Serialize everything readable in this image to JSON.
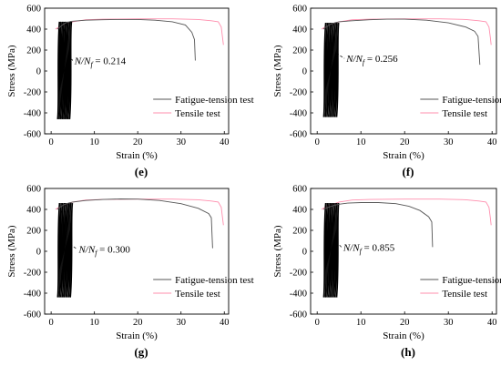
{
  "chart_data": [
    {
      "type": "line",
      "panel_label": "(e)",
      "xlabel": "Strain (%)",
      "ylabel": "Stress (MPa)",
      "xlim": [
        -1.5,
        41
      ],
      "ylim": [
        -600,
        600
      ],
      "xticks": [
        0,
        10,
        20,
        30,
        40
      ],
      "yticks": [
        -600,
        -400,
        -200,
        0,
        200,
        400,
        600
      ],
      "grid": false,
      "legend_position": "lower-right",
      "annotation": {
        "prefix": "N/N",
        "sub": "f",
        "suffix": " = 0.214",
        "at": [
          3.7,
          100
        ]
      },
      "series": [
        {
          "name": "Fatigue-tension test",
          "color": "#555555",
          "points": [
            [
              1.4,
              400
            ],
            [
              1.8,
              410
            ],
            [
              2.6,
              440
            ],
            [
              3.4,
              460
            ],
            [
              4.6,
              475
            ],
            [
              8,
              485
            ],
            [
              12,
              490
            ],
            [
              16,
              492
            ],
            [
              20,
              492
            ],
            [
              24,
              485
            ],
            [
              28,
              470
            ],
            [
              31,
              440
            ],
            [
              32.5,
              370
            ],
            [
              33.1,
              300
            ],
            [
              33.3,
              100
            ]
          ],
          "cyclic_band": {
            "x_min": 1.5,
            "x_max": 4.6,
            "y_min": -460,
            "y_max": 480
          }
        },
        {
          "name": "Tensile test",
          "color": "#ff8fae",
          "points": [
            [
              1.0,
              400
            ],
            [
              1.8,
              420
            ],
            [
              3,
              440
            ],
            [
              5,
              470
            ],
            [
              8,
              490
            ],
            [
              12,
              495
            ],
            [
              20,
              498
            ],
            [
              28,
              498
            ],
            [
              34,
              492
            ],
            [
              37,
              480
            ],
            [
              38.6,
              470
            ],
            [
              39.3,
              420
            ],
            [
              39.6,
              320
            ],
            [
              39.8,
              250
            ]
          ]
        }
      ]
    },
    {
      "type": "line",
      "panel_label": "(f)",
      "xlabel": "Strain (%)",
      "ylabel": "Stress (MPa)",
      "xlim": [
        -1.5,
        41
      ],
      "ylim": [
        -600,
        600
      ],
      "xticks": [
        0,
        10,
        20,
        30,
        40
      ],
      "yticks": [
        -600,
        -400,
        -200,
        0,
        200,
        400,
        600
      ],
      "grid": false,
      "legend_position": "lower-right",
      "annotation": {
        "prefix": "N/N",
        "sub": "f",
        "suffix": " = 0.256",
        "at": [
          5.0,
          120
        ]
      },
      "series": [
        {
          "name": "Fatigue-tension test",
          "color": "#555555",
          "points": [
            [
              1.4,
              400
            ],
            [
              2,
              420
            ],
            [
              3,
              445
            ],
            [
              4,
              460
            ],
            [
              5,
              470
            ],
            [
              8,
              480
            ],
            [
              12,
              490
            ],
            [
              16,
              495
            ],
            [
              20,
              495
            ],
            [
              25,
              485
            ],
            [
              30,
              460
            ],
            [
              34,
              420
            ],
            [
              36,
              380
            ],
            [
              36.8,
              330
            ],
            [
              37.2,
              60
            ]
          ],
          "cyclic_band": {
            "x_min": 1.5,
            "x_max": 4.8,
            "y_min": -440,
            "y_max": 470
          }
        },
        {
          "name": "Tensile test",
          "color": "#ff8fae",
          "points": [
            [
              1.0,
              400
            ],
            [
              1.8,
              420
            ],
            [
              3,
              440
            ],
            [
              5,
              470
            ],
            [
              8,
              490
            ],
            [
              12,
              495
            ],
            [
              20,
              498
            ],
            [
              28,
              498
            ],
            [
              34,
              492
            ],
            [
              37,
              480
            ],
            [
              38.6,
              470
            ],
            [
              39.3,
              420
            ],
            [
              39.6,
              320
            ],
            [
              39.8,
              250
            ]
          ]
        }
      ]
    },
    {
      "type": "line",
      "panel_label": "(g)",
      "xlabel": "Strain (%)",
      "ylabel": "Stress (MPa)",
      "xlim": [
        -1.5,
        41
      ],
      "ylim": [
        -600,
        600
      ],
      "xticks": [
        0,
        10,
        20,
        30,
        40
      ],
      "yticks": [
        -600,
        -400,
        -200,
        0,
        200,
        400,
        600
      ],
      "grid": false,
      "legend_position": "lower-right",
      "annotation": {
        "prefix": "N/N",
        "sub": "f",
        "suffix": " = 0.300",
        "at": [
          4.7,
          20
        ]
      },
      "series": [
        {
          "name": "Fatigue-tension test",
          "color": "#555555",
          "points": [
            [
              1.4,
              400
            ],
            [
              2,
              420
            ],
            [
              3,
              445
            ],
            [
              4,
              460
            ],
            [
              5,
              470
            ],
            [
              8,
              485
            ],
            [
              12,
              495
            ],
            [
              16,
              500
            ],
            [
              20,
              498
            ],
            [
              25,
              485
            ],
            [
              30,
              455
            ],
            [
              34,
              410
            ],
            [
              36.4,
              360
            ],
            [
              37,
              320
            ],
            [
              37.3,
              30
            ]
          ],
          "cyclic_band": {
            "x_min": 1.5,
            "x_max": 4.8,
            "y_min": -440,
            "y_max": 470
          }
        },
        {
          "name": "Tensile test",
          "color": "#ff8fae",
          "points": [
            [
              1.0,
              400
            ],
            [
              1.8,
              420
            ],
            [
              3,
              440
            ],
            [
              5,
              470
            ],
            [
              8,
              490
            ],
            [
              12,
              495
            ],
            [
              20,
              498
            ],
            [
              28,
              498
            ],
            [
              34,
              492
            ],
            [
              37,
              480
            ],
            [
              38.6,
              470
            ],
            [
              39.3,
              420
            ],
            [
              39.6,
              320
            ],
            [
              39.8,
              250
            ]
          ]
        }
      ]
    },
    {
      "type": "line",
      "panel_label": "(h)",
      "xlabel": "Strain (%)",
      "ylabel": "Stress (MPa)",
      "xlim": [
        -1.5,
        41
      ],
      "ylim": [
        -600,
        600
      ],
      "xticks": [
        0,
        10,
        20,
        30,
        40
      ],
      "yticks": [
        -600,
        -400,
        -200,
        0,
        200,
        400,
        600
      ],
      "grid": false,
      "legend_position": "lower-right",
      "annotation": {
        "prefix": "N/N",
        "sub": "f",
        "suffix": " = 0.855",
        "at": [
          4.3,
          40
        ]
      },
      "series": [
        {
          "name": "Fatigue-tension test",
          "color": "#555555",
          "points": [
            [
              1.4,
              400
            ],
            [
              2.5,
              420
            ],
            [
              4,
              440
            ],
            [
              5,
              450
            ],
            [
              7,
              460
            ],
            [
              10,
              465
            ],
            [
              14,
              465
            ],
            [
              18,
              455
            ],
            [
              21,
              430
            ],
            [
              23.5,
              390
            ],
            [
              25.5,
              330
            ],
            [
              26.2,
              280
            ],
            [
              26.4,
              40
            ]
          ],
          "cyclic_band": {
            "x_min": 1.5,
            "x_max": 4.8,
            "y_min": -440,
            "y_max": 470
          }
        },
        {
          "name": "Tensile test",
          "color": "#ff8fae",
          "points": [
            [
              1.0,
              400
            ],
            [
              1.8,
              420
            ],
            [
              3,
              440
            ],
            [
              5,
              470
            ],
            [
              8,
              490
            ],
            [
              12,
              495
            ],
            [
              20,
              498
            ],
            [
              28,
              498
            ],
            [
              34,
              492
            ],
            [
              37,
              480
            ],
            [
              38.6,
              470
            ],
            [
              39.3,
              420
            ],
            [
              39.6,
              320
            ],
            [
              39.8,
              250
            ]
          ]
        }
      ]
    }
  ]
}
